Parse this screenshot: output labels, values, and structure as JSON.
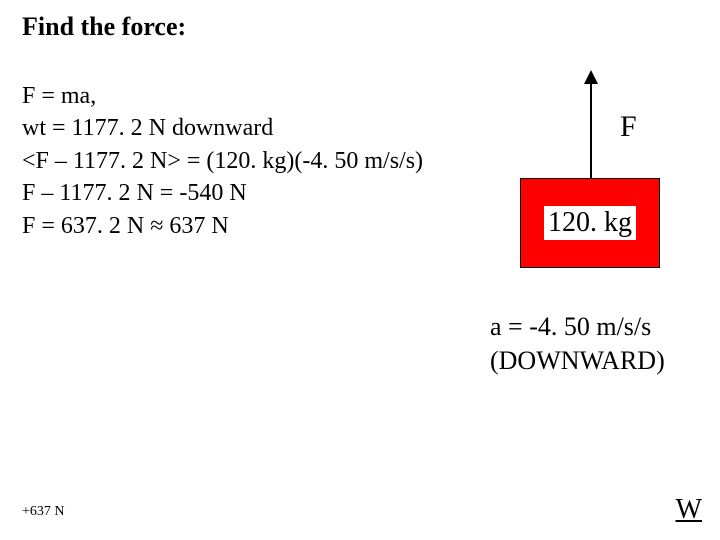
{
  "title": "Find the force:",
  "equations": {
    "line1": "F = ma,",
    "line2": "wt = 1177. 2 N downward",
    "line3": "<F – 1177. 2 N> = (120. kg)(-4. 50 m/s/s)",
    "line4": "F – 1177. 2 N = -540 N",
    "line5": "F = 637. 2 N ≈ 637 N"
  },
  "diagram": {
    "force_label": "F",
    "mass_label": "120. kg",
    "box_color": "#ff0000",
    "arrow_color": "#000000"
  },
  "acceleration": {
    "line1": "a = -4. 50 m/s/s",
    "line2": "(DOWNWARD)"
  },
  "footer": {
    "left": "+637 N",
    "right": "W"
  }
}
